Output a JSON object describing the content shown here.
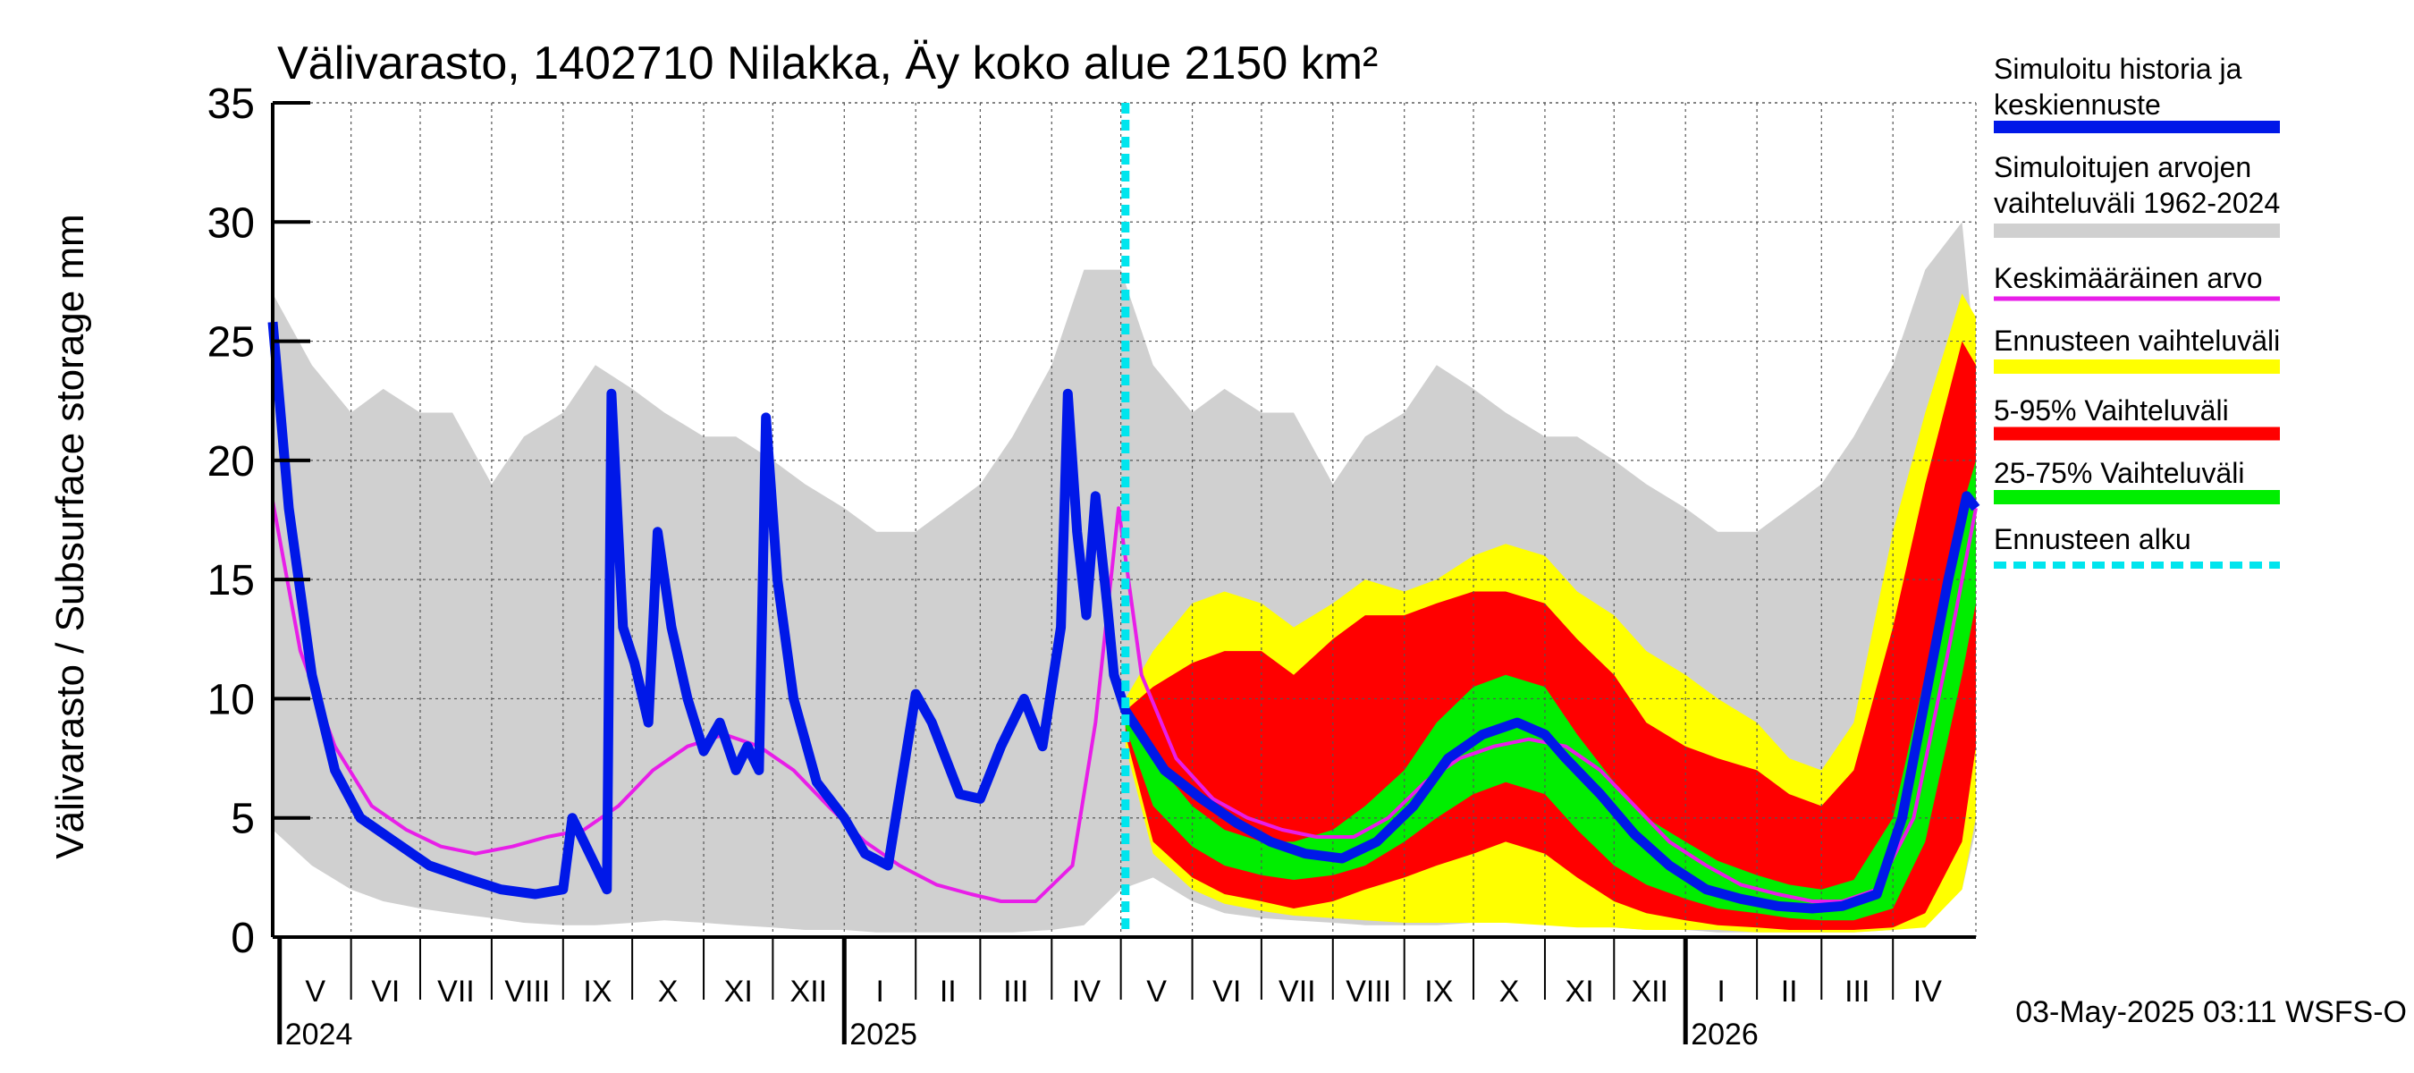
{
  "chart_data": {
    "type": "area",
    "title": "Välivarasto, 1402710 Nilakka, Äy koko alue 2150 km²",
    "ylabel": "Välivarasto / Subsurface storage  mm",
    "ylim": [
      0,
      35
    ],
    "yticks": [
      0,
      5,
      10,
      15,
      20,
      25,
      30,
      35
    ],
    "x_range": [
      "2024-04-28",
      "2026-05-07"
    ],
    "month_labels": [
      {
        "label": "V",
        "start": "2024-05-01",
        "end": "2024-06-01"
      },
      {
        "label": "VI",
        "start": "2024-06-01",
        "end": "2024-07-01"
      },
      {
        "label": "VII",
        "start": "2024-07-01",
        "end": "2024-08-01"
      },
      {
        "label": "VIII",
        "start": "2024-08-01",
        "end": "2024-09-01"
      },
      {
        "label": "IX",
        "start": "2024-09-01",
        "end": "2024-10-01"
      },
      {
        "label": "X",
        "start": "2024-10-01",
        "end": "2024-11-01"
      },
      {
        "label": "XI",
        "start": "2024-11-01",
        "end": "2024-12-01"
      },
      {
        "label": "XII",
        "start": "2024-12-01",
        "end": "2025-01-01"
      },
      {
        "label": "I",
        "start": "2025-01-01",
        "end": "2025-02-01"
      },
      {
        "label": "II",
        "start": "2025-02-01",
        "end": "2025-03-01"
      },
      {
        "label": "III",
        "start": "2025-03-01",
        "end": "2025-04-01"
      },
      {
        "label": "IV",
        "start": "2025-04-01",
        "end": "2025-05-01"
      },
      {
        "label": "V",
        "start": "2025-05-01",
        "end": "2025-06-01"
      },
      {
        "label": "VI",
        "start": "2025-06-01",
        "end": "2025-07-01"
      },
      {
        "label": "VII",
        "start": "2025-07-01",
        "end": "2025-08-01"
      },
      {
        "label": "VIII",
        "start": "2025-08-01",
        "end": "2025-09-01"
      },
      {
        "label": "IX",
        "start": "2025-09-01",
        "end": "2025-10-01"
      },
      {
        "label": "X",
        "start": "2025-10-01",
        "end": "2025-11-01"
      },
      {
        "label": "XI",
        "start": "2025-11-01",
        "end": "2025-12-01"
      },
      {
        "label": "XII",
        "start": "2025-12-01",
        "end": "2026-01-01"
      },
      {
        "label": "I",
        "start": "2026-01-01",
        "end": "2026-02-01"
      },
      {
        "label": "II",
        "start": "2026-02-01",
        "end": "2026-03-01"
      },
      {
        "label": "III",
        "start": "2026-03-01",
        "end": "2026-04-01"
      },
      {
        "label": "IV",
        "start": "2026-04-01",
        "end": "2026-05-01"
      }
    ],
    "year_labels": [
      {
        "label": "2024",
        "date": "2024-05-01"
      },
      {
        "label": "2025",
        "date": "2025-01-01"
      },
      {
        "label": "2026",
        "date": "2026-01-01"
      }
    ],
    "forecast_start": "2025-05-03",
    "legend": [
      {
        "label": "Simuloitu historia ja keskiennuste",
        "color": "#0018e8"
      },
      {
        "label": "Simuloitujen arvojen vaihteluväli 1962-2024",
        "color": "#d0d0d0"
      },
      {
        "label": "Keskimääräinen arvo",
        "color": "#e81ee8"
      },
      {
        "label": "Ennusteen vaihteluväli",
        "color": "#ffff00"
      },
      {
        "label": "5-95% Vaihteluväli",
        "color": "#ff0000"
      },
      {
        "label": "25-75% Vaihteluväli",
        "color": "#00ee00"
      },
      {
        "label": "Ennusteen alku",
        "color": "#00e5ee"
      }
    ],
    "footer": "03-May-2025 03:11 WSFS-O",
    "series": [
      {
        "name": "Simulated range 1962-2024",
        "kind": "band",
        "color": "#d0d0d0",
        "x": [
          "2024-04-28",
          "2024-05-15",
          "2024-06-01",
          "2024-06-15",
          "2024-07-01",
          "2024-07-15",
          "2024-08-01",
          "2024-08-15",
          "2024-09-01",
          "2024-09-15",
          "2024-10-01",
          "2024-10-15",
          "2024-11-01",
          "2024-11-15",
          "2024-12-01",
          "2024-12-15",
          "2025-01-01",
          "2025-01-15",
          "2025-02-01",
          "2025-02-15",
          "2025-03-01",
          "2025-03-15",
          "2025-04-01",
          "2025-04-15",
          "2025-05-01",
          "2025-05-15",
          "2025-06-01",
          "2025-06-15",
          "2025-07-01",
          "2025-07-15",
          "2025-08-01",
          "2025-08-15",
          "2025-09-01",
          "2025-09-15",
          "2025-10-01",
          "2025-10-15",
          "2025-11-01",
          "2025-11-15",
          "2025-12-01",
          "2025-12-15",
          "2026-01-01",
          "2026-01-15",
          "2026-02-01",
          "2026-02-15",
          "2026-03-01",
          "2026-03-15",
          "2026-04-01",
          "2026-04-15",
          "2026-05-01",
          "2026-05-07"
        ],
        "low": [
          4.5,
          3.0,
          2.0,
          1.5,
          1.2,
          1.0,
          0.8,
          0.6,
          0.5,
          0.5,
          0.6,
          0.7,
          0.6,
          0.5,
          0.4,
          0.3,
          0.3,
          0.2,
          0.2,
          0.2,
          0.2,
          0.2,
          0.3,
          0.5,
          2.0,
          2.5,
          1.5,
          1.0,
          0.8,
          0.7,
          0.6,
          0.5,
          0.5,
          0.5,
          0.6,
          0.7,
          0.6,
          0.5,
          0.4,
          0.3,
          0.3,
          0.2,
          0.2,
          0.2,
          0.2,
          0.2,
          0.3,
          0.5,
          2.0,
          4.5
        ],
        "high": [
          27,
          24,
          22,
          23,
          22,
          22,
          19,
          21,
          22,
          24,
          23,
          22,
          21,
          21,
          20,
          19,
          18,
          17,
          17,
          18,
          19,
          21,
          24,
          28,
          28,
          24,
          22,
          23,
          22,
          22,
          19,
          21,
          22,
          24,
          23,
          22,
          21,
          21,
          20,
          19,
          18,
          17,
          17,
          18,
          19,
          21,
          24,
          28,
          30,
          24
        ]
      },
      {
        "name": "Ennusteen vaihteluväli",
        "kind": "band",
        "color": "#ffff00",
        "x": [
          "2025-05-03",
          "2025-05-15",
          "2025-06-01",
          "2025-06-15",
          "2025-07-01",
          "2025-07-15",
          "2025-08-01",
          "2025-08-15",
          "2025-09-01",
          "2025-09-15",
          "2025-10-01",
          "2025-10-15",
          "2025-11-01",
          "2025-11-15",
          "2025-12-01",
          "2025-12-15",
          "2026-01-01",
          "2026-01-15",
          "2026-02-01",
          "2026-02-15",
          "2026-03-01",
          "2026-03-15",
          "2026-04-01",
          "2026-04-15",
          "2026-05-01",
          "2026-05-07"
        ],
        "low": [
          8.0,
          3.5,
          2.0,
          1.4,
          1.1,
          0.9,
          0.8,
          0.7,
          0.6,
          0.6,
          0.6,
          0.6,
          0.5,
          0.4,
          0.4,
          0.3,
          0.3,
          0.3,
          0.2,
          0.2,
          0.2,
          0.2,
          0.3,
          0.4,
          2.0,
          5.0
        ],
        "high": [
          10.0,
          12.0,
          14.0,
          14.5,
          14.0,
          13.0,
          14.0,
          15.0,
          14.5,
          15.0,
          16.0,
          16.5,
          16.0,
          14.5,
          13.5,
          12.0,
          11.0,
          10.0,
          9.0,
          7.5,
          7.0,
          9.0,
          17.0,
          22.0,
          27.0,
          26.0
        ]
      },
      {
        "name": "5-95% Vaihteluväli",
        "kind": "band",
        "color": "#ff0000",
        "x": [
          "2025-05-03",
          "2025-05-15",
          "2025-06-01",
          "2025-06-15",
          "2025-07-01",
          "2025-07-15",
          "2025-08-01",
          "2025-08-15",
          "2025-09-01",
          "2025-09-15",
          "2025-10-01",
          "2025-10-15",
          "2025-11-01",
          "2025-11-15",
          "2025-12-01",
          "2025-12-15",
          "2026-01-01",
          "2026-01-15",
          "2026-02-01",
          "2026-02-15",
          "2026-03-01",
          "2026-03-15",
          "2026-04-01",
          "2026-04-15",
          "2026-05-01",
          "2026-05-07"
        ],
        "low": [
          8.5,
          4.0,
          2.5,
          1.8,
          1.5,
          1.2,
          1.5,
          2.0,
          2.5,
          3.0,
          3.5,
          4.0,
          3.5,
          2.5,
          1.5,
          1.0,
          0.7,
          0.5,
          0.4,
          0.3,
          0.3,
          0.3,
          0.4,
          1.0,
          4.0,
          8.0
        ],
        "high": [
          9.5,
          10.5,
          11.5,
          12.0,
          12.0,
          11.0,
          12.5,
          13.5,
          13.5,
          14.0,
          14.5,
          14.5,
          14.0,
          12.5,
          11.0,
          9.0,
          8.0,
          7.5,
          7.0,
          6.0,
          5.5,
          7.0,
          13.0,
          19.0,
          25.0,
          24.0
        ]
      },
      {
        "name": "25-75% Vaihteluväli",
        "kind": "band",
        "color": "#00ee00",
        "x": [
          "2025-05-03",
          "2025-05-15",
          "2025-06-01",
          "2025-06-15",
          "2025-07-01",
          "2025-07-15",
          "2025-08-01",
          "2025-08-15",
          "2025-09-01",
          "2025-09-15",
          "2025-10-01",
          "2025-10-15",
          "2025-11-01",
          "2025-11-15",
          "2025-12-01",
          "2025-12-15",
          "2026-01-01",
          "2026-01-15",
          "2026-02-01",
          "2026-02-15",
          "2026-03-01",
          "2026-03-15",
          "2026-04-01",
          "2026-04-15",
          "2026-05-01",
          "2026-05-07"
        ],
        "low": [
          8.8,
          5.5,
          3.8,
          3.0,
          2.6,
          2.4,
          2.6,
          3.0,
          4.0,
          5.0,
          6.0,
          6.5,
          6.0,
          4.5,
          3.0,
          2.2,
          1.6,
          1.2,
          1.0,
          0.8,
          0.7,
          0.7,
          1.2,
          4.0,
          11.0,
          14.0
        ],
        "high": [
          9.2,
          7.5,
          5.5,
          4.5,
          4.0,
          4.0,
          4.5,
          5.5,
          7.0,
          9.0,
          10.5,
          11.0,
          10.5,
          8.5,
          6.5,
          5.0,
          4.0,
          3.2,
          2.6,
          2.2,
          2.0,
          2.4,
          5.0,
          11.0,
          18.0,
          20.0
        ]
      },
      {
        "name": "Keskimääräinen arvo",
        "kind": "line",
        "color": "#e81ee8",
        "x": [
          "2024-04-28",
          "2024-05-10",
          "2024-05-25",
          "2024-06-10",
          "2024-06-25",
          "2024-07-10",
          "2024-07-25",
          "2024-08-10",
          "2024-08-25",
          "2024-09-10",
          "2024-09-25",
          "2024-10-10",
          "2024-10-25",
          "2024-11-10",
          "2024-11-25",
          "2024-12-10",
          "2024-12-25",
          "2025-01-10",
          "2025-01-25",
          "2025-02-10",
          "2025-02-25",
          "2025-03-10",
          "2025-03-25",
          "2025-04-10",
          "2025-04-20",
          "2025-04-30",
          "2025-05-10",
          "2025-05-25",
          "2025-06-10",
          "2025-06-25",
          "2025-07-10",
          "2025-07-25",
          "2025-08-10",
          "2025-08-25",
          "2025-09-10",
          "2025-09-25",
          "2025-10-10",
          "2025-10-25",
          "2025-11-10",
          "2025-11-25",
          "2025-12-10",
          "2025-12-25",
          "2026-01-10",
          "2026-01-25",
          "2026-02-10",
          "2026-02-25",
          "2026-03-10",
          "2026-03-25",
          "2026-04-10",
          "2026-04-25",
          "2026-05-07"
        ],
        "values": [
          18.3,
          12.0,
          8.0,
          5.5,
          4.5,
          3.8,
          3.5,
          3.8,
          4.2,
          4.5,
          5.5,
          7.0,
          8.0,
          8.5,
          8.0,
          7.0,
          5.5,
          4.0,
          3.0,
          2.2,
          1.8,
          1.5,
          1.5,
          3.0,
          9.0,
          18.0,
          11.0,
          7.5,
          5.8,
          5.0,
          4.5,
          4.2,
          4.2,
          5.0,
          6.5,
          7.5,
          8.0,
          8.3,
          8.0,
          7.0,
          5.5,
          4.0,
          3.0,
          2.2,
          1.8,
          1.5,
          1.5,
          2.0,
          5.0,
          12.0,
          18.0
        ]
      },
      {
        "name": "Simuloitu historia ja keskiennuste",
        "kind": "line",
        "color": "#0018e8",
        "x": [
          "2024-04-28",
          "2024-05-05",
          "2024-05-15",
          "2024-05-25",
          "2024-06-05",
          "2024-06-20",
          "2024-07-05",
          "2024-07-20",
          "2024-08-05",
          "2024-08-20",
          "2024-09-01",
          "2024-09-05",
          "2024-09-15",
          "2024-09-20",
          "2024-09-22",
          "2024-09-27",
          "2024-10-02",
          "2024-10-08",
          "2024-10-12",
          "2024-10-18",
          "2024-10-25",
          "2024-11-01",
          "2024-11-08",
          "2024-11-15",
          "2024-11-20",
          "2024-11-25",
          "2024-11-28",
          "2024-12-03",
          "2024-12-10",
          "2024-12-20",
          "2025-01-01",
          "2025-01-10",
          "2025-01-20",
          "2025-02-01",
          "2025-02-08",
          "2025-02-20",
          "2025-03-01",
          "2025-03-10",
          "2025-03-20",
          "2025-03-28",
          "2025-04-05",
          "2025-04-08",
          "2025-04-12",
          "2025-04-16",
          "2025-04-20",
          "2025-04-25",
          "2025-04-28",
          "2025-05-03",
          "2025-05-20",
          "2025-06-05",
          "2025-06-20",
          "2025-07-05",
          "2025-07-20",
          "2025-08-05",
          "2025-08-20",
          "2025-09-05",
          "2025-09-20",
          "2025-10-05",
          "2025-10-20",
          "2025-11-01",
          "2025-11-10",
          "2025-11-25",
          "2025-12-10",
          "2025-12-25",
          "2026-01-10",
          "2026-01-25",
          "2026-02-10",
          "2026-02-25",
          "2026-03-10",
          "2026-03-25",
          "2026-04-05",
          "2026-04-15",
          "2026-04-25",
          "2026-05-03",
          "2026-05-07"
        ],
        "values": [
          25.8,
          18.0,
          11.0,
          7.0,
          5.0,
          4.0,
          3.0,
          2.5,
          2.0,
          1.8,
          2.0,
          5.0,
          3.0,
          2.0,
          22.8,
          13.0,
          11.5,
          9.0,
          17.0,
          13.0,
          10.0,
          7.8,
          9.0,
          7.0,
          8.0,
          7.0,
          21.8,
          15.0,
          10.0,
          6.5,
          5.0,
          3.5,
          3.0,
          10.2,
          9.0,
          6.0,
          5.8,
          8.0,
          10.0,
          8.0,
          13.0,
          22.8,
          17.0,
          13.5,
          18.5,
          14.0,
          11.0,
          9.5,
          7.0,
          5.8,
          4.8,
          4.0,
          3.5,
          3.3,
          4.0,
          5.5,
          7.5,
          8.5,
          9.0,
          8.5,
          7.5,
          6.0,
          4.3,
          3.0,
          2.0,
          1.6,
          1.3,
          1.2,
          1.3,
          1.8,
          5.0,
          10.0,
          15.0,
          18.5,
          18.0
        ]
      }
    ]
  }
}
